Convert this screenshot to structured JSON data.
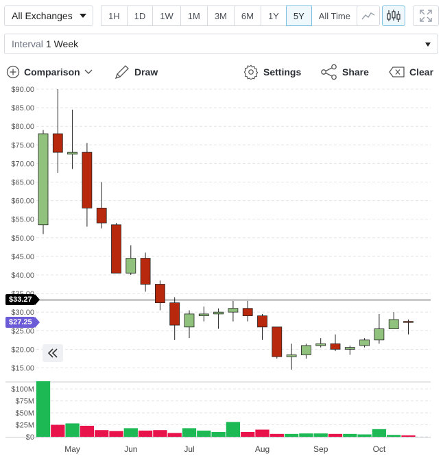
{
  "toolbar": {
    "exchange": "All Exchanges",
    "ranges": [
      "1H",
      "1D",
      "1W",
      "1M",
      "3M",
      "6M",
      "1Y",
      "5Y",
      "All Time"
    ],
    "selected_range": "5Y",
    "interval_label": "Interval",
    "interval_value": "1 Week",
    "comparison_label": "Comparison",
    "draw_label": "Draw",
    "settings_label": "Settings",
    "share_label": "Share",
    "clear_label": "Clear"
  },
  "chart_data": {
    "type": "candlestick",
    "price_axis": {
      "min": 12.5,
      "max": 90,
      "ticks": [
        15,
        20,
        25,
        30,
        35,
        40,
        45,
        50,
        55,
        60,
        65,
        70,
        75,
        80,
        85,
        90
      ],
      "format": "$0.00"
    },
    "volume_axis": {
      "max": 116000000,
      "tick_labels": [
        "$100M",
        "$75M",
        "$50M",
        "$25M",
        "$0"
      ],
      "tick_values": [
        100000000,
        75000000,
        50000000,
        25000000,
        0
      ]
    },
    "x_labels": [
      {
        "label": "May",
        "week": 2
      },
      {
        "label": "Jun",
        "week": 6
      },
      {
        "label": "Jul",
        "week": 10
      },
      {
        "label": "Aug",
        "week": 15
      },
      {
        "label": "Sep",
        "week": 19
      },
      {
        "label": "Oct",
        "week": 23
      }
    ],
    "current_price": "$33.27",
    "current_price_value": 33.27,
    "last_price": "$27.25",
    "last_price_value": 27.25,
    "colors": {
      "up": "#91c27d",
      "down": "#b8280c",
      "vol_up": "#1db954",
      "vol_down": "#e8134a",
      "last_tag": "#6b5bd6",
      "current_tag": "#000000"
    },
    "candles": [
      {
        "o": 53.5,
        "h": 79,
        "l": 51,
        "c": 78,
        "v": 116000000
      },
      {
        "o": 78,
        "h": 90,
        "l": 67.5,
        "c": 73,
        "v": 25000000
      },
      {
        "o": 72.5,
        "h": 84.5,
        "l": 68.5,
        "c": 73,
        "v": 28000000
      },
      {
        "o": 73,
        "h": 75.5,
        "l": 53,
        "c": 58,
        "v": 23000000
      },
      {
        "o": 58,
        "h": 65,
        "l": 52.5,
        "c": 54,
        "v": 14000000
      },
      {
        "o": 53.5,
        "h": 54,
        "l": 40.5,
        "c": 40.5,
        "v": 12000000
      },
      {
        "o": 40.5,
        "h": 48,
        "l": 40,
        "c": 44.5,
        "v": 18000000
      },
      {
        "o": 44.5,
        "h": 46,
        "l": 35.5,
        "c": 37.5,
        "v": 13000000
      },
      {
        "o": 37.5,
        "h": 38.5,
        "l": 30.5,
        "c": 32.5,
        "v": 14000000
      },
      {
        "o": 32.5,
        "h": 34,
        "l": 22.5,
        "c": 26.5,
        "v": 8000000
      },
      {
        "o": 26,
        "h": 30.5,
        "l": 23,
        "c": 29.5,
        "v": 18000000
      },
      {
        "o": 29,
        "h": 31.5,
        "l": 27.5,
        "c": 29.5,
        "v": 13000000
      },
      {
        "o": 29.5,
        "h": 31,
        "l": 25.5,
        "c": 30,
        "v": 10000000
      },
      {
        "o": 30,
        "h": 33,
        "l": 27.5,
        "c": 31,
        "v": 31000000
      },
      {
        "o": 31,
        "h": 33,
        "l": 27.5,
        "c": 29,
        "v": 10000000
      },
      {
        "o": 29,
        "h": 29.5,
        "l": 22.5,
        "c": 26,
        "v": 15000000
      },
      {
        "o": 26,
        "h": 26,
        "l": 17.5,
        "c": 18,
        "v": 6000000
      },
      {
        "o": 18,
        "h": 21.5,
        "l": 14.5,
        "c": 18.5,
        "v": 6000000
      },
      {
        "o": 18.5,
        "h": 21.5,
        "l": 17.5,
        "c": 21,
        "v": 7000000
      },
      {
        "o": 21,
        "h": 23,
        "l": 20.5,
        "c": 21.5,
        "v": 7000000
      },
      {
        "o": 21.5,
        "h": 24,
        "l": 19.5,
        "c": 20,
        "v": 6000000
      },
      {
        "o": 20,
        "h": 21,
        "l": 18.5,
        "c": 20.5,
        "v": 6000000
      },
      {
        "o": 21,
        "h": 23,
        "l": 20.5,
        "c": 22.5,
        "v": 5000000
      },
      {
        "o": 22.5,
        "h": 29.5,
        "l": 21.5,
        "c": 25.5,
        "v": 16000000
      },
      {
        "o": 25.5,
        "h": 30,
        "l": 25.5,
        "c": 28,
        "v": 4000000
      },
      {
        "o": 27.5,
        "h": 28,
        "l": 24,
        "c": 27.25,
        "v": 3000000
      }
    ]
  }
}
